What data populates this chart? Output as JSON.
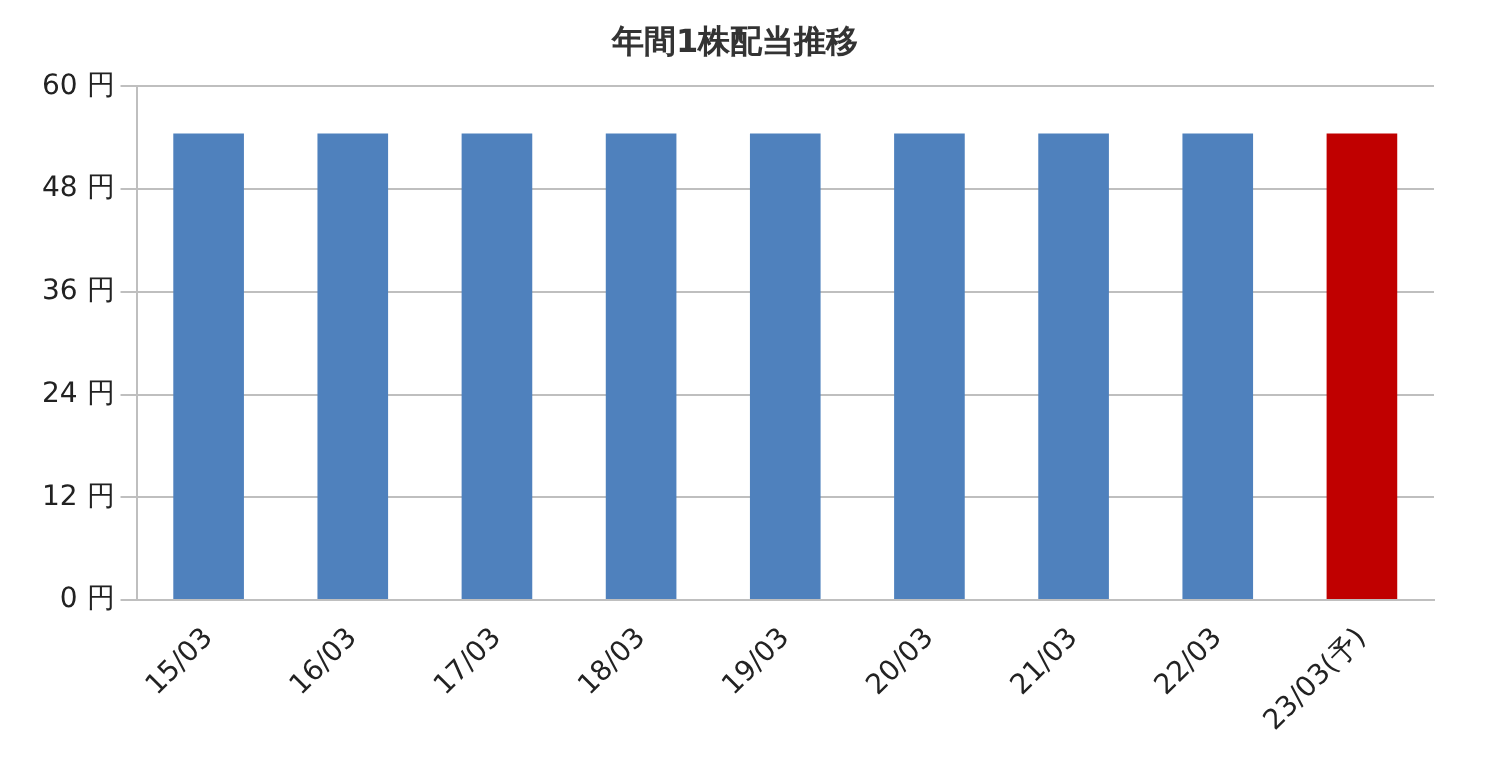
{
  "chart_data": {
    "type": "bar",
    "title": "年間1株配当推移",
    "categories": [
      "15/03",
      "16/03",
      "17/03",
      "18/03",
      "19/03",
      "20/03",
      "21/03",
      "22/03",
      "23/03(予)"
    ],
    "values": [
      54.5,
      54.5,
      54.5,
      54.5,
      54.5,
      54.5,
      54.5,
      54.5,
      54.5
    ],
    "colors": [
      "#4f81bd",
      "#4f81bd",
      "#4f81bd",
      "#4f81bd",
      "#4f81bd",
      "#4f81bd",
      "#4f81bd",
      "#4f81bd",
      "#c00000"
    ],
    "ylim": [
      0,
      60
    ],
    "yticks": [
      {
        "value": 0,
        "label": "0 円"
      },
      {
        "value": 12,
        "label": "12 円"
      },
      {
        "value": 24,
        "label": "24 円"
      },
      {
        "value": 36,
        "label": "36 円"
      },
      {
        "value": 48,
        "label": "48 円"
      },
      {
        "value": 60,
        "label": "60 円"
      }
    ],
    "grid": "y",
    "legend": false
  }
}
